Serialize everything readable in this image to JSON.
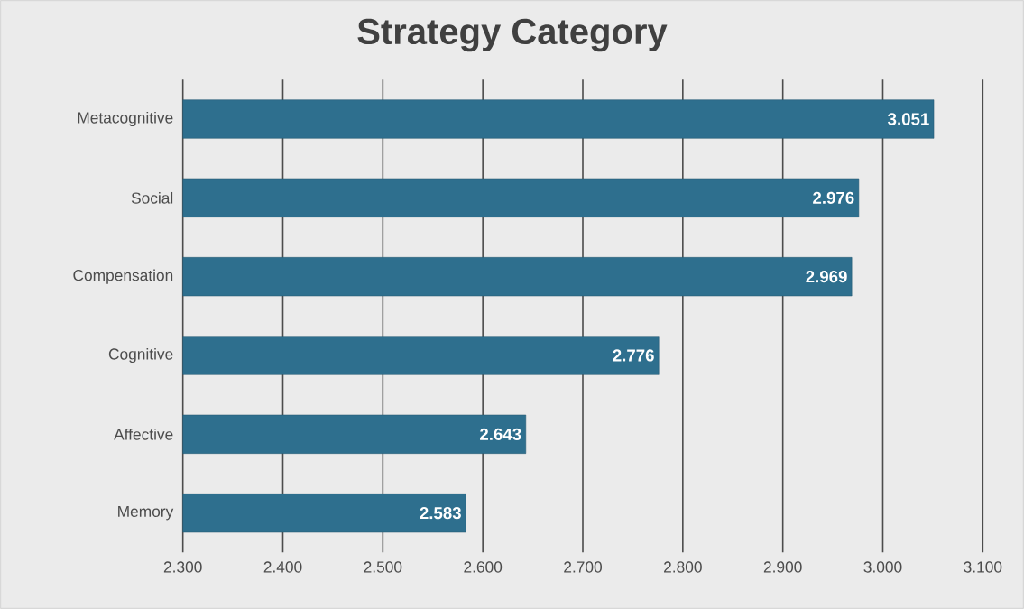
{
  "chart_data": {
    "type": "bar",
    "title": "Strategy Category",
    "orientation": "horizontal",
    "categories": [
      "Metacognitive",
      "Social",
      "Compensation",
      "Cognitive",
      "Affective",
      "Memory"
    ],
    "values": [
      3.051,
      2.976,
      2.969,
      2.776,
      2.643,
      2.583
    ],
    "color": "#2e6f8e",
    "xlim": [
      2.3,
      3.1
    ],
    "xticks": [
      {
        "value": 2.3,
        "label": "2.300"
      },
      {
        "value": 2.4,
        "label": "2.400"
      },
      {
        "value": 2.5,
        "label": "2.500"
      },
      {
        "value": 2.6,
        "label": "2.600"
      },
      {
        "value": 2.7,
        "label": "2.700"
      },
      {
        "value": 2.8,
        "label": "2.800"
      },
      {
        "value": 2.9,
        "label": "2.900"
      },
      {
        "value": 3.0,
        "label": "3.000"
      },
      {
        "value": 3.1,
        "label": "3.100"
      }
    ],
    "grid": "x",
    "data_labels": true
  }
}
